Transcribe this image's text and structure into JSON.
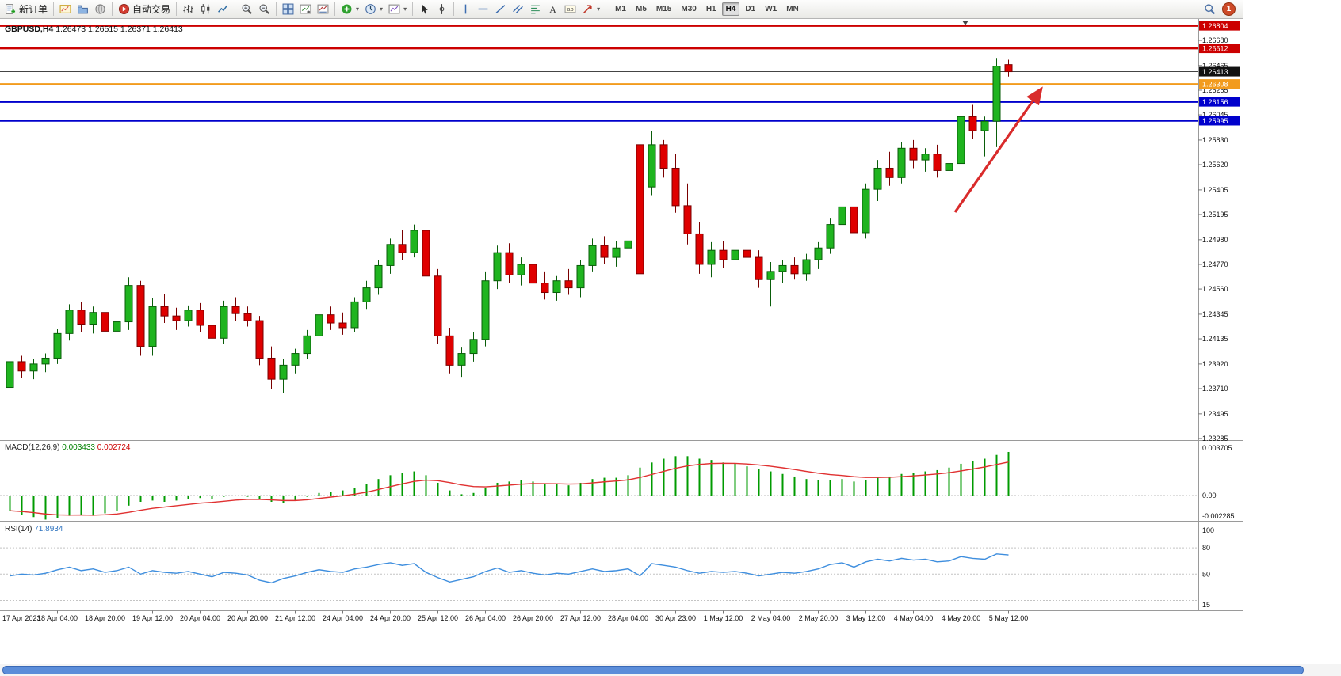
{
  "toolbar": {
    "new_order_label": "新订单",
    "autotrading_label": "自动交易",
    "timeframes": [
      "M1",
      "M5",
      "M15",
      "M30",
      "H1",
      "H4",
      "D1",
      "W1",
      "MN"
    ],
    "active_timeframe": "H4",
    "notification_badge": "1"
  },
  "chart_data": {
    "type": "candlestick",
    "symbol": "GBPUSD,H4",
    "ohlc_readout": {
      "open": "1.26473",
      "high": "1.26515",
      "low": "1.26371",
      "close": "1.26413"
    },
    "price_axis": {
      "max": 1.2668,
      "min": 1.23285
    },
    "price_axis_ticks": [
      "1.26680",
      "1.26465",
      "1.26255",
      "1.26045",
      "1.25830",
      "1.25620",
      "1.25405",
      "1.25195",
      "1.24980",
      "1.24770",
      "1.24560",
      "1.24345",
      "1.24135",
      "1.23920",
      "1.23710",
      "1.23495",
      "1.23285"
    ],
    "level_lines": [
      {
        "price": 1.26804,
        "label": "1.26804",
        "color": "#CC0000",
        "width": 2.5
      },
      {
        "price": 1.26612,
        "label": "1.26612",
        "color": "#CC0000",
        "width": 2.5
      },
      {
        "price": 1.26308,
        "label": "1.26308",
        "color": "#F29B1D",
        "width": 2
      },
      {
        "price": 1.26156,
        "label": "1.26156",
        "color": "#0000CC",
        "width": 2.5
      },
      {
        "price": 1.25995,
        "label": "1.25995",
        "color": "#0000CC",
        "width": 2.5
      }
    ],
    "current_price": {
      "value": 1.26413,
      "label": "1.26413",
      "color": "#111111"
    },
    "time_labels": [
      "17 Apr 2023",
      "18 Apr 04:00",
      "18 Apr 20:00",
      "19 Apr 12:00",
      "20 Apr 04:00",
      "20 Apr 20:00",
      "21 Apr 12:00",
      "24 Apr 04:00",
      "24 Apr 20:00",
      "25 Apr 12:00",
      "26 Apr 04:00",
      "26 Apr 20:00",
      "27 Apr 12:00",
      "28 Apr 04:00",
      "30 Apr 23:00",
      "1 May 12:00",
      "2 May 04:00",
      "2 May 20:00",
      "3 May 12:00",
      "4 May 04:00",
      "4 May 20:00",
      "5 May 12:00"
    ],
    "candles": [
      [
        1.2372,
        1.2398,
        1.2352,
        1.2394
      ],
      [
        1.2394,
        1.2399,
        1.238,
        1.2386
      ],
      [
        1.2386,
        1.2396,
        1.2379,
        1.2392
      ],
      [
        1.2392,
        1.2401,
        1.2385,
        1.2397
      ],
      [
        1.2397,
        1.2422,
        1.2392,
        1.2418
      ],
      [
        1.2418,
        1.2443,
        1.2412,
        1.2438
      ],
      [
        1.2438,
        1.2445,
        1.2419,
        1.2426
      ],
      [
        1.2426,
        1.2441,
        1.2418,
        1.2436
      ],
      [
        1.2436,
        1.244,
        1.2414,
        1.242
      ],
      [
        1.242,
        1.2433,
        1.2411,
        1.2428
      ],
      [
        1.2428,
        1.2466,
        1.2421,
        1.2459
      ],
      [
        1.2459,
        1.2463,
        1.2399,
        1.2407
      ],
      [
        1.2407,
        1.2448,
        1.2399,
        1.2441
      ],
      [
        1.2441,
        1.2452,
        1.2427,
        1.2433
      ],
      [
        1.2433,
        1.244,
        1.2421,
        1.2429
      ],
      [
        1.2429,
        1.2442,
        1.2424,
        1.2438
      ],
      [
        1.2438,
        1.2444,
        1.2419,
        1.2425
      ],
      [
        1.2425,
        1.2437,
        1.2407,
        1.2414
      ],
      [
        1.2414,
        1.2446,
        1.2409,
        1.2441
      ],
      [
        1.2441,
        1.2449,
        1.2429,
        1.2435
      ],
      [
        1.2435,
        1.2441,
        1.2424,
        1.2429
      ],
      [
        1.2429,
        1.2433,
        1.2391,
        1.2397
      ],
      [
        1.2397,
        1.2407,
        1.2371,
        1.2379
      ],
      [
        1.2379,
        1.2396,
        1.2367,
        1.2391
      ],
      [
        1.2391,
        1.2405,
        1.2384,
        1.2401
      ],
      [
        1.2401,
        1.2421,
        1.2396,
        1.2416
      ],
      [
        1.2416,
        1.2439,
        1.2411,
        1.2434
      ],
      [
        1.2434,
        1.2441,
        1.2421,
        1.2427
      ],
      [
        1.2427,
        1.2436,
        1.2417,
        1.2423
      ],
      [
        1.2423,
        1.2449,
        1.2419,
        1.2445
      ],
      [
        1.2445,
        1.2463,
        1.2439,
        1.2457
      ],
      [
        1.2457,
        1.2481,
        1.2451,
        1.2476
      ],
      [
        1.2476,
        1.2499,
        1.2469,
        1.2494
      ],
      [
        1.2494,
        1.2506,
        1.2481,
        1.2487
      ],
      [
        1.2487,
        1.2511,
        1.2483,
        1.2506
      ],
      [
        1.2506,
        1.2509,
        1.2461,
        1.2467
      ],
      [
        1.2467,
        1.2473,
        1.2409,
        1.2416
      ],
      [
        1.2416,
        1.2423,
        1.2384,
        1.2391
      ],
      [
        1.2391,
        1.2406,
        1.2381,
        1.2401
      ],
      [
        1.2401,
        1.2419,
        1.2394,
        1.2413
      ],
      [
        1.2413,
        1.2471,
        1.2407,
        1.2463
      ],
      [
        1.2463,
        1.2493,
        1.2456,
        1.2487
      ],
      [
        1.2487,
        1.2495,
        1.2461,
        1.2468
      ],
      [
        1.2468,
        1.2483,
        1.2459,
        1.2477
      ],
      [
        1.2477,
        1.2483,
        1.2454,
        1.2461
      ],
      [
        1.2461,
        1.2471,
        1.2447,
        1.2453
      ],
      [
        1.2453,
        1.2467,
        1.2446,
        1.2463
      ],
      [
        1.2463,
        1.2473,
        1.2451,
        1.2457
      ],
      [
        1.2457,
        1.2481,
        1.2449,
        1.2476
      ],
      [
        1.2476,
        1.2499,
        1.2471,
        1.2493
      ],
      [
        1.2493,
        1.2501,
        1.2477,
        1.2483
      ],
      [
        1.2483,
        1.2497,
        1.2475,
        1.2491
      ],
      [
        1.2491,
        1.2503,
        1.2481,
        1.2497
      ],
      [
        1.2579,
        1.2586,
        1.2465,
        1.2469
      ],
      [
        1.2543,
        1.2591,
        1.2536,
        1.2579
      ],
      [
        1.2579,
        1.2583,
        1.2551,
        1.2559
      ],
      [
        1.2559,
        1.2571,
        1.2521,
        1.2527
      ],
      [
        1.2527,
        1.2546,
        1.2494,
        1.2503
      ],
      [
        1.2503,
        1.2513,
        1.2469,
        1.2477
      ],
      [
        1.2477,
        1.2496,
        1.2466,
        1.2489
      ],
      [
        1.2489,
        1.2497,
        1.2474,
        1.2481
      ],
      [
        1.2481,
        1.2493,
        1.2471,
        1.2489
      ],
      [
        1.2489,
        1.2496,
        1.2477,
        1.2483
      ],
      [
        1.2483,
        1.2489,
        1.2457,
        1.2464
      ],
      [
        1.2464,
        1.2479,
        1.2441,
        1.2471
      ],
      [
        1.2471,
        1.2481,
        1.2461,
        1.2476
      ],
      [
        1.2476,
        1.2483,
        1.2464,
        1.2469
      ],
      [
        1.2469,
        1.2486,
        1.2463,
        1.2481
      ],
      [
        1.2481,
        1.2496,
        1.2473,
        1.2491
      ],
      [
        1.2491,
        1.2516,
        1.2486,
        1.2511
      ],
      [
        1.2511,
        1.2531,
        1.2506,
        1.2526
      ],
      [
        1.2526,
        1.2533,
        1.2497,
        1.2504
      ],
      [
        1.2504,
        1.2546,
        1.2499,
        1.2541
      ],
      [
        1.2541,
        1.2566,
        1.2531,
        1.2559
      ],
      [
        1.2559,
        1.2573,
        1.2544,
        1.2551
      ],
      [
        1.2551,
        1.2581,
        1.2546,
        1.2576
      ],
      [
        1.2576,
        1.2583,
        1.2559,
        1.2566
      ],
      [
        1.2566,
        1.2576,
        1.2556,
        1.2571
      ],
      [
        1.2571,
        1.2579,
        1.2551,
        1.2557
      ],
      [
        1.2557,
        1.2569,
        1.2547,
        1.2563
      ],
      [
        1.2563,
        1.2611,
        1.2556,
        1.2603
      ],
      [
        1.2603,
        1.2613,
        1.2584,
        1.2591
      ],
      [
        1.2591,
        1.2603,
        1.2569,
        1.2599
      ],
      [
        1.2599,
        1.2653,
        1.2577,
        1.2646
      ],
      [
        1.26473,
        1.26515,
        1.26371,
        1.26413
      ]
    ],
    "macd": {
      "label": "MACD(12,26,9)",
      "values_text": [
        "0.003433",
        "0.002724"
      ],
      "axis_labels": [
        "0.003705",
        "0.00",
        "-0.002285"
      ],
      "range": {
        "max": 0.003705,
        "min": -0.002285
      },
      "histogram": [
        -0.0012,
        -0.0015,
        -0.0017,
        -0.0019,
        -0.0018,
        -0.0016,
        -0.0015,
        -0.0016,
        -0.0014,
        -0.0012,
        -0.0008,
        -0.0005,
        -0.0004,
        -0.0005,
        -0.0004,
        -0.0003,
        -0.0002,
        -0.0003,
        -0.0001,
        0.0,
        -0.0001,
        -0.0003,
        -0.0005,
        -0.0006,
        -0.0004,
        -0.0001,
        0.0002,
        0.0003,
        0.0004,
        0.0006,
        0.0009,
        0.0013,
        0.0016,
        0.0018,
        0.0019,
        0.0016,
        0.001,
        0.0004,
        0.0001,
        0.0002,
        0.0006,
        0.001,
        0.0011,
        0.0012,
        0.0011,
        0.0009,
        0.0009,
        0.0008,
        0.001,
        0.0013,
        0.0014,
        0.0014,
        0.0016,
        0.0022,
        0.0026,
        0.0029,
        0.0031,
        0.0031,
        0.0029,
        0.0028,
        0.0026,
        0.0025,
        0.0023,
        0.0021,
        0.0019,
        0.0017,
        0.0015,
        0.0013,
        0.0012,
        0.0012,
        0.0013,
        0.0011,
        0.0012,
        0.0014,
        0.0015,
        0.0017,
        0.0018,
        0.0019,
        0.002,
        0.0022,
        0.0025,
        0.0027,
        0.0029,
        0.0032,
        0.003433
      ]
    },
    "rsi": {
      "label": "RSI(14)",
      "value_text": "71.8934",
      "axis_labels": [
        "100",
        "80",
        "50",
        "15"
      ],
      "levels": [
        80,
        50,
        20
      ],
      "range": {
        "max": 100,
        "min": 15
      },
      "values": [
        48,
        50,
        49,
        51,
        55,
        58,
        54,
        56,
        52,
        54,
        58,
        50,
        54,
        52,
        51,
        53,
        50,
        47,
        52,
        51,
        49,
        43,
        40,
        45,
        48,
        52,
        55,
        53,
        52,
        56,
        58,
        61,
        63,
        60,
        62,
        52,
        46,
        41,
        44,
        47,
        53,
        57,
        52,
        54,
        51,
        49,
        51,
        50,
        53,
        56,
        53,
        54,
        56,
        48,
        62,
        60,
        58,
        54,
        51,
        53,
        52,
        53,
        51,
        48,
        50,
        52,
        51,
        53,
        56,
        61,
        63,
        58,
        64,
        67,
        65,
        68,
        66,
        67,
        64,
        65,
        70,
        68,
        67,
        73,
        71.8934
      ]
    },
    "annotation_arrow": {
      "color": "#D92B2B"
    }
  }
}
